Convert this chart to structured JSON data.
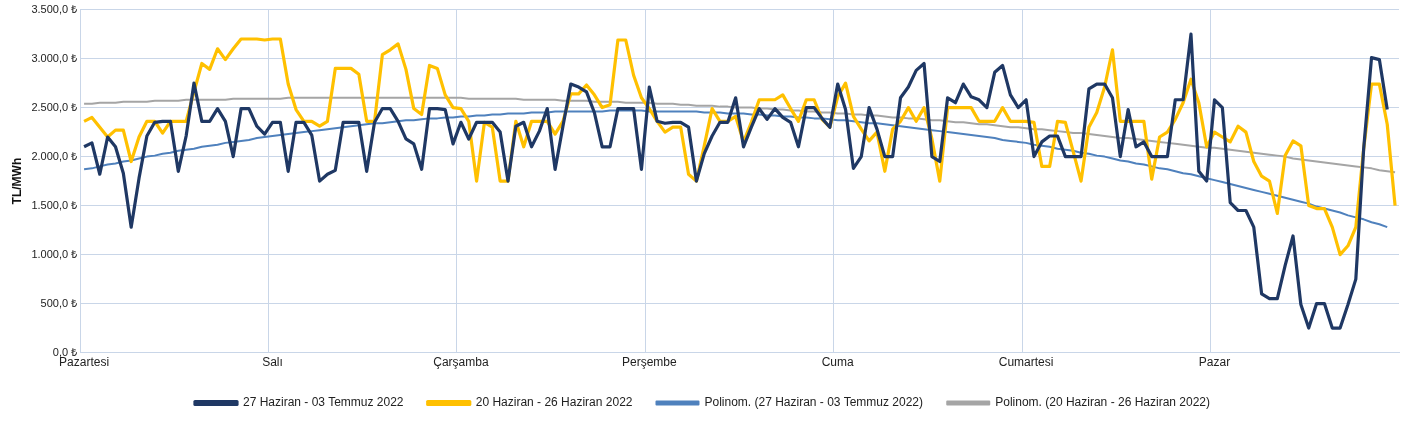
{
  "chart_data": {
    "type": "line",
    "ylabel": "TL/MWh",
    "categories": [
      "Pazartesi",
      null,
      null,
      null,
      null,
      null,
      null,
      null,
      null,
      null,
      null,
      null,
      null,
      null,
      null,
      null,
      null,
      null,
      null,
      null,
      null,
      null,
      null,
      null,
      "Salı",
      null,
      null,
      null,
      null,
      null,
      null,
      null,
      null,
      null,
      null,
      null,
      null,
      null,
      null,
      null,
      null,
      null,
      null,
      null,
      null,
      null,
      null,
      null,
      "Çarşamba",
      null,
      null,
      null,
      null,
      null,
      null,
      null,
      null,
      null,
      null,
      null,
      null,
      null,
      null,
      null,
      null,
      null,
      null,
      null,
      null,
      null,
      null,
      null,
      "Perşembe",
      null,
      null,
      null,
      null,
      null,
      null,
      null,
      null,
      null,
      null,
      null,
      null,
      null,
      null,
      null,
      null,
      null,
      null,
      null,
      null,
      null,
      null,
      null,
      "Cuma",
      null,
      null,
      null,
      null,
      null,
      null,
      null,
      null,
      null,
      null,
      null,
      null,
      null,
      null,
      null,
      null,
      null,
      null,
      null,
      null,
      null,
      null,
      null,
      "Cumartesi",
      null,
      null,
      null,
      null,
      null,
      null,
      null,
      null,
      null,
      null,
      null,
      null,
      null,
      null,
      null,
      null,
      null,
      null,
      null,
      null,
      null,
      null,
      null,
      "Pazar",
      null,
      null,
      null,
      null,
      null,
      null,
      null,
      null,
      null,
      null,
      null,
      null,
      null,
      null,
      null,
      null,
      null,
      null,
      null,
      null,
      null,
      null,
      null
    ],
    "ylim": [
      0,
      3500
    ],
    "yticks": [
      {
        "value": 0,
        "label": "0,0 ₺"
      },
      {
        "value": 500,
        "label": "500,0 ₺"
      },
      {
        "value": 1000,
        "label": "1.000,0 ₺"
      },
      {
        "value": 1500,
        "label": "1.500,0 ₺"
      },
      {
        "value": 2000,
        "label": "2.000,0 ₺"
      },
      {
        "value": 2500,
        "label": "2.500,0 ₺"
      },
      {
        "value": 3000,
        "label": "3.000,0 ₺"
      },
      {
        "value": 3500,
        "label": "3.500,0 ₺"
      }
    ],
    "grid": true,
    "legend": "bottom",
    "series": [
      {
        "name": "27 Haziran - 03 Temmuz 2022",
        "color": "#1f3864",
        "values": [
          2100,
          2140,
          1820,
          2200,
          2100,
          1830,
          1280,
          1780,
          2210,
          2350,
          2360,
          2360,
          1850,
          2210,
          2750,
          2360,
          2360,
          2490,
          2360,
          2000,
          2490,
          2490,
          2310,
          2230,
          2350,
          2350,
          1850,
          2350,
          2350,
          2220,
          1750,
          1820,
          1860,
          2350,
          2350,
          2350,
          1850,
          2350,
          2490,
          2490,
          2360,
          2180,
          2130,
          1870,
          2490,
          2490,
          2480,
          2130,
          2350,
          2180,
          2350,
          2350,
          2350,
          2250,
          1750,
          2310,
          2350,
          2100,
          2260,
          2490,
          1870,
          2310,
          2740,
          2710,
          2660,
          2450,
          2100,
          2100,
          2490,
          2490,
          2490,
          1870,
          2710,
          2360,
          2340,
          2350,
          2350,
          2300,
          1750,
          2030,
          2210,
          2350,
          2350,
          2600,
          2100,
          2300,
          2490,
          2380,
          2490,
          2400,
          2350,
          2100,
          2500,
          2500,
          2390,
          2300,
          2740,
          2480,
          1880,
          2000,
          2500,
          2280,
          2000,
          2000,
          2600,
          2710,
          2880,
          2950,
          2000,
          1950,
          2600,
          2550,
          2740,
          2610,
          2580,
          2500,
          2860,
          2930,
          2630,
          2500,
          2580,
          2000,
          2150,
          2210,
          2210,
          2000,
          2000,
          2000,
          2690,
          2740,
          2740,
          2600,
          2000,
          2480,
          2100,
          2150,
          2000,
          2000,
          2000,
          2580,
          2580,
          3250,
          1850,
          1750,
          2580,
          2500,
          1530,
          1450,
          1450,
          1280,
          600,
          550,
          550,
          890,
          1190,
          490,
          250,
          500,
          500,
          250,
          250,
          490,
          750,
          2080,
          3010,
          2990,
          2480,
          null
        ]
      },
      {
        "name": "20 Haziran - 26 Haziran 2022",
        "color": "#ffc000",
        "values": [
          2360,
          2400,
          2300,
          2200,
          2270,
          2270,
          1950,
          2200,
          2360,
          2360,
          2240,
          2360,
          2360,
          2360,
          2660,
          2950,
          2890,
          3100,
          2990,
          3100,
          3200,
          3200,
          3200,
          3190,
          3200,
          3200,
          2740,
          2480,
          2360,
          2360,
          2310,
          2360,
          2900,
          2900,
          2900,
          2840,
          2360,
          2360,
          3040,
          3090,
          3150,
          2890,
          2490,
          2430,
          2930,
          2900,
          2630,
          2500,
          2490,
          2360,
          1750,
          2350,
          2300,
          1750,
          1750,
          2360,
          2100,
          2360,
          2360,
          2360,
          2230,
          2360,
          2640,
          2640,
          2730,
          2630,
          2500,
          2530,
          3190,
          3190,
          2830,
          2600,
          2490,
          2360,
          2250,
          2300,
          2300,
          1820,
          1750,
          2110,
          2490,
          2360,
          2360,
          2410,
          2150,
          2350,
          2580,
          2580,
          2580,
          2630,
          2490,
          2360,
          2580,
          2580,
          2380,
          2300,
          2610,
          2750,
          2410,
          2280,
          2160,
          2250,
          1850,
          2280,
          2360,
          2500,
          2360,
          2500,
          2180,
          1750,
          2500,
          2500,
          2500,
          2500,
          2360,
          2360,
          2360,
          2500,
          2360,
          2360,
          2360,
          2350,
          1900,
          1900,
          2360,
          2350,
          2050,
          1750,
          2300,
          2450,
          2710,
          3090,
          2360,
          2360,
          2360,
          2360,
          1770,
          2200,
          2250,
          2380,
          2550,
          2790,
          2550,
          2100,
          2250,
          2200,
          2150,
          2310,
          2250,
          1950,
          1800,
          1750,
          1420,
          2010,
          2160,
          2110,
          1500,
          1470,
          1470,
          1280,
          1000,
          1090,
          1280,
          2080,
          2740,
          2740,
          2330,
          1500
        ]
      },
      {
        "name": "Polinom. (27 Haziran - 03 Temmuz 2022)",
        "color": "#4f81bd",
        "values": [
          1870,
          1880,
          1900,
          1920,
          1930,
          1950,
          1960,
          1980,
          2000,
          2010,
          2030,
          2040,
          2060,
          2070,
          2080,
          2100,
          2110,
          2120,
          2140,
          2150,
          2160,
          2170,
          2190,
          2200,
          2210,
          2220,
          2230,
          2240,
          2250,
          2260,
          2270,
          2280,
          2290,
          2300,
          2310,
          2320,
          2330,
          2340,
          2340,
          2350,
          2360,
          2370,
          2370,
          2380,
          2390,
          2390,
          2400,
          2400,
          2410,
          2410,
          2420,
          2420,
          2430,
          2430,
          2440,
          2440,
          2440,
          2450,
          2450,
          2450,
          2460,
          2460,
          2460,
          2460,
          2460,
          2460,
          2460,
          2470,
          2470,
          2470,
          2470,
          2470,
          2460,
          2460,
          2460,
          2460,
          2460,
          2460,
          2460,
          2450,
          2450,
          2450,
          2440,
          2440,
          2440,
          2430,
          2430,
          2420,
          2420,
          2410,
          2410,
          2400,
          2400,
          2390,
          2390,
          2380,
          2370,
          2370,
          2360,
          2350,
          2340,
          2340,
          2330,
          2320,
          2310,
          2300,
          2290,
          2280,
          2270,
          2260,
          2250,
          2240,
          2230,
          2220,
          2210,
          2200,
          2190,
          2170,
          2160,
          2150,
          2140,
          2120,
          2110,
          2100,
          2080,
          2070,
          2060,
          2040,
          2030,
          2010,
          2000,
          1980,
          1960,
          1950,
          1930,
          1920,
          1900,
          1880,
          1870,
          1850,
          1830,
          1820,
          1800,
          1780,
          1760,
          1740,
          1720,
          1700,
          1680,
          1660,
          1640,
          1620,
          1600,
          1580,
          1560,
          1540,
          1520,
          1490,
          1470,
          1450,
          1430,
          1400,
          1380,
          1360,
          1330,
          1310,
          1280,
          null
        ]
      },
      {
        "name": "Polinom. (20 Haziran - 26 Haziran 2022)",
        "color": "#a5a5a5",
        "values": [
          2540,
          2540,
          2550,
          2550,
          2550,
          2560,
          2560,
          2560,
          2560,
          2570,
          2570,
          2570,
          2570,
          2580,
          2580,
          2580,
          2580,
          2580,
          2580,
          2590,
          2590,
          2590,
          2590,
          2590,
          2590,
          2590,
          2600,
          2600,
          2600,
          2600,
          2600,
          2600,
          2600,
          2600,
          2600,
          2600,
          2600,
          2600,
          2600,
          2600,
          2600,
          2600,
          2600,
          2600,
          2600,
          2600,
          2600,
          2600,
          2600,
          2590,
          2590,
          2590,
          2590,
          2590,
          2590,
          2590,
          2580,
          2580,
          2580,
          2580,
          2580,
          2570,
          2570,
          2570,
          2570,
          2560,
          2560,
          2560,
          2560,
          2550,
          2550,
          2550,
          2550,
          2540,
          2540,
          2540,
          2530,
          2530,
          2520,
          2520,
          2520,
          2510,
          2510,
          2500,
          2500,
          2500,
          2490,
          2490,
          2480,
          2480,
          2470,
          2470,
          2460,
          2460,
          2450,
          2450,
          2440,
          2440,
          2430,
          2430,
          2420,
          2420,
          2410,
          2400,
          2400,
          2390,
          2390,
          2380,
          2370,
          2370,
          2360,
          2350,
          2350,
          2340,
          2330,
          2330,
          2320,
          2310,
          2300,
          2300,
          2290,
          2280,
          2280,
          2270,
          2260,
          2250,
          2240,
          2240,
          2230,
          2220,
          2210,
          2200,
          2190,
          2190,
          2180,
          2170,
          2160,
          2150,
          2140,
          2130,
          2120,
          2110,
          2100,
          2090,
          2090,
          2080,
          2070,
          2060,
          2050,
          2040,
          2030,
          2020,
          2010,
          2000,
          1980,
          1970,
          1960,
          1950,
          1940,
          1930,
          1920,
          1910,
          1900,
          1890,
          1880,
          1860,
          1850,
          1840
        ]
      }
    ]
  }
}
